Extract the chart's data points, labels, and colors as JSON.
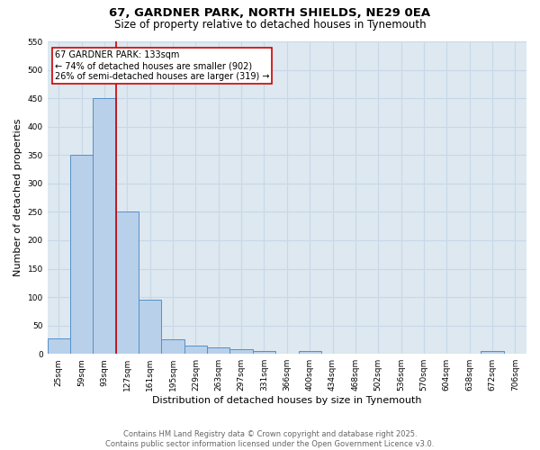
{
  "title_line1": "67, GARDNER PARK, NORTH SHIELDS, NE29 0EA",
  "title_line2": "Size of property relative to detached houses in Tynemouth",
  "xlabel": "Distribution of detached houses by size in Tynemouth",
  "ylabel": "Number of detached properties",
  "categories": [
    "25sqm",
    "59sqm",
    "93sqm",
    "127sqm",
    "161sqm",
    "195sqm",
    "229sqm",
    "263sqm",
    "297sqm",
    "331sqm",
    "366sqm",
    "400sqm",
    "434sqm",
    "468sqm",
    "502sqm",
    "536sqm",
    "570sqm",
    "604sqm",
    "638sqm",
    "672sqm",
    "706sqm"
  ],
  "values": [
    28,
    350,
    450,
    250,
    95,
    25,
    15,
    12,
    8,
    5,
    0,
    5,
    0,
    0,
    0,
    0,
    0,
    0,
    0,
    5,
    0
  ],
  "bar_color": "#b8d0ea",
  "bar_edge_color": "#5590c8",
  "red_line_x": 3.0,
  "red_line_color": "#cc0000",
  "annotation_text": "67 GARDNER PARK: 133sqm\n← 74% of detached houses are smaller (902)\n26% of semi-detached houses are larger (319) →",
  "annotation_box_color": "#cc0000",
  "annotation_text_color": "#000000",
  "ylim": [
    0,
    550
  ],
  "yticks": [
    0,
    50,
    100,
    150,
    200,
    250,
    300,
    350,
    400,
    450,
    500,
    550
  ],
  "grid_color": "#c8d8e8",
  "background_color": "#dde8f0",
  "footer_line1": "Contains HM Land Registry data © Crown copyright and database right 2025.",
  "footer_line2": "Contains public sector information licensed under the Open Government Licence v3.0.",
  "title_fontsize": 9.5,
  "subtitle_fontsize": 8.5,
  "tick_fontsize": 6.5,
  "axis_label_fontsize": 8,
  "annotation_fontsize": 7,
  "footer_fontsize": 6
}
